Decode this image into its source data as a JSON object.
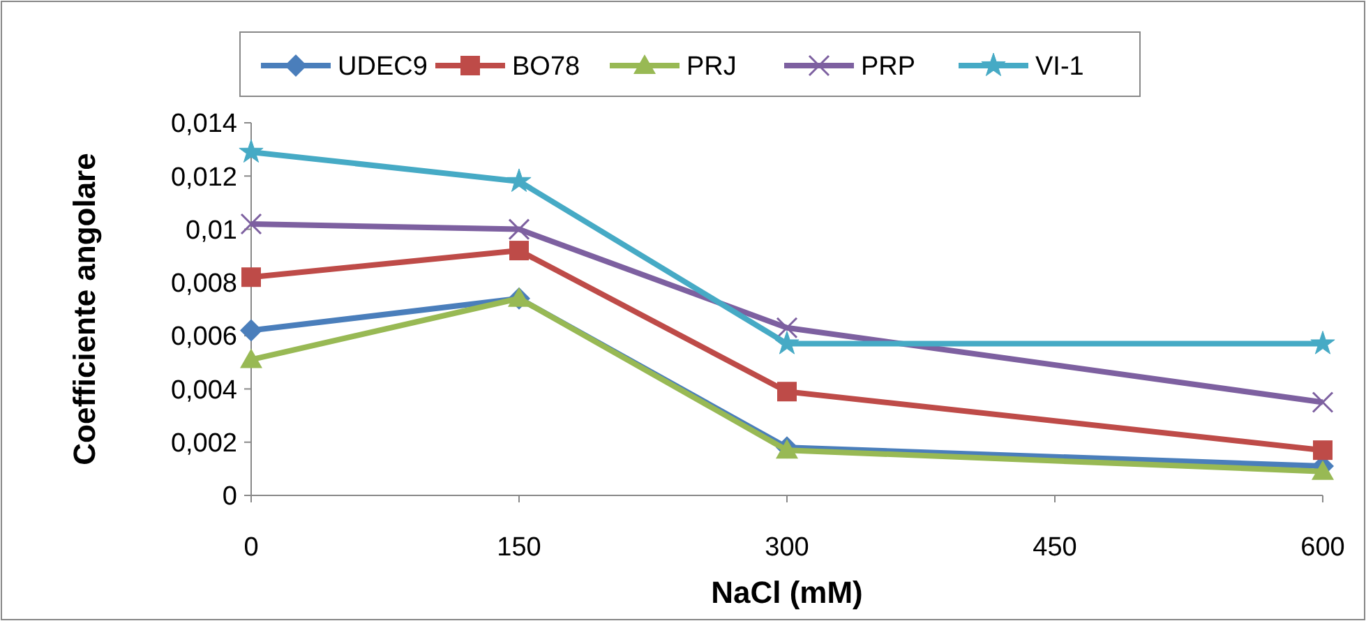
{
  "chart_data": {
    "type": "line",
    "xlabel": "NaCl (mM)",
    "ylabel": "Coefficiente angolare",
    "x": [
      0,
      150,
      300,
      600
    ],
    "series": [
      {
        "name": "UDEC9",
        "color": "#4a7ebb",
        "marker": "diamond",
        "values": [
          0.0062,
          0.0074,
          0.0018,
          0.0011
        ]
      },
      {
        "name": "BO78",
        "color": "#be4b48",
        "marker": "square",
        "values": [
          0.0082,
          0.0092,
          0.0039,
          0.0017
        ]
      },
      {
        "name": "PRJ",
        "color": "#98b954",
        "marker": "triangle",
        "values": [
          0.0051,
          0.0074,
          0.0017,
          0.0009
        ]
      },
      {
        "name": "PRP",
        "color": "#7d60a0",
        "marker": "cross",
        "values": [
          0.0102,
          0.01,
          0.0063,
          0.0035
        ]
      },
      {
        "name": "VI-1",
        "color": "#46aac5",
        "marker": "star",
        "values": [
          0.0129,
          0.0118,
          0.0057,
          0.0057
        ]
      }
    ],
    "xlim": [
      0,
      600
    ],
    "xticks": [
      0,
      150,
      300,
      450,
      600
    ],
    "ylim": [
      0,
      0.014
    ],
    "yticks": [
      0,
      {
        "value": 0.002,
        "label": "0,002"
      },
      {
        "value": 0.004,
        "label": "0,004"
      },
      {
        "value": 0.006,
        "label": "0,006"
      },
      {
        "value": 0.008,
        "label": "0,008"
      },
      {
        "value": 0.01,
        "label": "0,01"
      },
      {
        "value": 0.012,
        "label": "0,012"
      },
      {
        "value": 0.014,
        "label": "0,014"
      }
    ],
    "legend": "top"
  }
}
